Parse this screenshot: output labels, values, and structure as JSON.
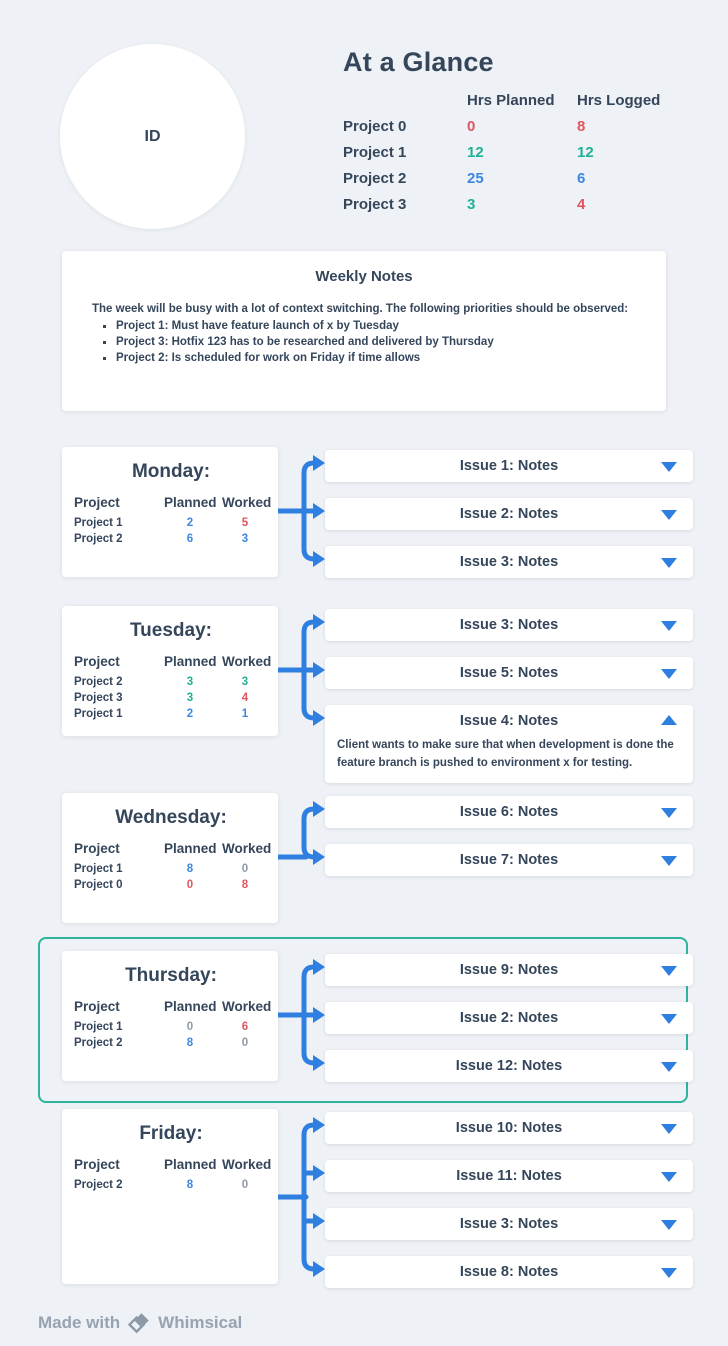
{
  "colors": {
    "background": "#eef1f5",
    "card": "#ffffff",
    "dark_text": "#35465b",
    "blue": "#3d87e2",
    "teal": "#1fb095",
    "red": "#e2555f",
    "gray": "#8d99a6",
    "arrow": "#2e7fdf",
    "highlight_border": "#2fb39c",
    "footer_gray": "#97a3b1"
  },
  "glance": {
    "avatar_label": "ID",
    "title": "At a Glance",
    "columns": {
      "planned": "Hrs Planned",
      "logged": "Hrs Logged"
    },
    "rows": [
      {
        "name": "Project 0",
        "planned": "0",
        "planned_color": "red",
        "logged": "8",
        "logged_color": "red"
      },
      {
        "name": "Project 1",
        "planned": "12",
        "planned_color": "teal",
        "logged": "12",
        "logged_color": "teal"
      },
      {
        "name": "Project 2",
        "planned": "25",
        "planned_color": "blue",
        "logged": "6",
        "logged_color": "blue"
      },
      {
        "name": "Project 3",
        "planned": "3",
        "planned_color": "teal",
        "logged": "4",
        "logged_color": "red"
      }
    ]
  },
  "weekly_notes": {
    "title": "Weekly Notes",
    "intro": "The week will be busy with a lot of context switching. The following priorities should be observed:",
    "bullets": [
      "Project 1: Must have feature launch of x by Tuesday",
      "Project 3: Hotfix 123 has to be researched and delivered by Thursday",
      "Project 2: Is scheduled for work on Friday if time allows"
    ]
  },
  "day_table_headers": {
    "project": "Project",
    "planned": "Planned",
    "worked": "Worked"
  },
  "days": [
    {
      "title": "Monday:",
      "highlighted": false,
      "rows": [
        {
          "name": "Project 1",
          "planned": "2",
          "planned_color": "blue",
          "worked": "5",
          "worked_color": "red"
        },
        {
          "name": "Project 2",
          "planned": "6",
          "planned_color": "blue",
          "worked": "3",
          "worked_color": "blue"
        }
      ],
      "issues": [
        {
          "title": "Issue 1: Notes",
          "expanded": false
        },
        {
          "title": "Issue 2: Notes",
          "expanded": false
        },
        {
          "title": "Issue 3: Notes",
          "expanded": false
        }
      ]
    },
    {
      "title": "Tuesday:",
      "highlighted": false,
      "rows": [
        {
          "name": "Project 2",
          "planned": "3",
          "planned_color": "teal",
          "worked": "3",
          "worked_color": "teal"
        },
        {
          "name": "Project 3",
          "planned": "3",
          "planned_color": "teal",
          "worked": "4",
          "worked_color": "red"
        },
        {
          "name": "Project 1",
          "planned": "2",
          "planned_color": "blue",
          "worked": "1",
          "worked_color": "blue"
        }
      ],
      "issues": [
        {
          "title": "Issue 3: Notes",
          "expanded": false
        },
        {
          "title": "Issue 5: Notes",
          "expanded": false
        },
        {
          "title": "Issue 4: Notes",
          "expanded": true,
          "body": "Client wants to make sure that when development is done the feature branch is pushed to environment x for testing."
        }
      ]
    },
    {
      "title": "Wednesday:",
      "highlighted": false,
      "rows": [
        {
          "name": "Project 1",
          "planned": "8",
          "planned_color": "blue",
          "worked": "0",
          "worked_color": "gray"
        },
        {
          "name": "Project 0",
          "planned": "0",
          "planned_color": "red",
          "worked": "8",
          "worked_color": "red"
        }
      ],
      "issues": [
        {
          "title": "Issue 6: Notes",
          "expanded": false
        },
        {
          "title": "Issue 7: Notes",
          "expanded": false
        }
      ]
    },
    {
      "title": "Thursday:",
      "highlighted": true,
      "rows": [
        {
          "name": "Project 1",
          "planned": "0",
          "planned_color": "gray",
          "worked": "6",
          "worked_color": "red"
        },
        {
          "name": "Project 2",
          "planned": "8",
          "planned_color": "blue",
          "worked": "0",
          "worked_color": "gray"
        }
      ],
      "issues": [
        {
          "title": "Issue 9: Notes",
          "expanded": false
        },
        {
          "title": "Issue 2: Notes",
          "expanded": false
        },
        {
          "title": "Issue 12: Notes",
          "expanded": false
        }
      ]
    },
    {
      "title": "Friday:",
      "highlighted": false,
      "rows": [
        {
          "name": "Project 2",
          "planned": "8",
          "planned_color": "blue",
          "worked": "0",
          "worked_color": "gray"
        }
      ],
      "issues": [
        {
          "title": "Issue 10: Notes",
          "expanded": false
        },
        {
          "title": "Issue 11: Notes",
          "expanded": false
        },
        {
          "title": "Issue 3: Notes",
          "expanded": false
        },
        {
          "title": "Issue 8: Notes",
          "expanded": false
        }
      ]
    }
  ],
  "footer": {
    "made_with": "Made with",
    "brand": "Whimsical"
  }
}
